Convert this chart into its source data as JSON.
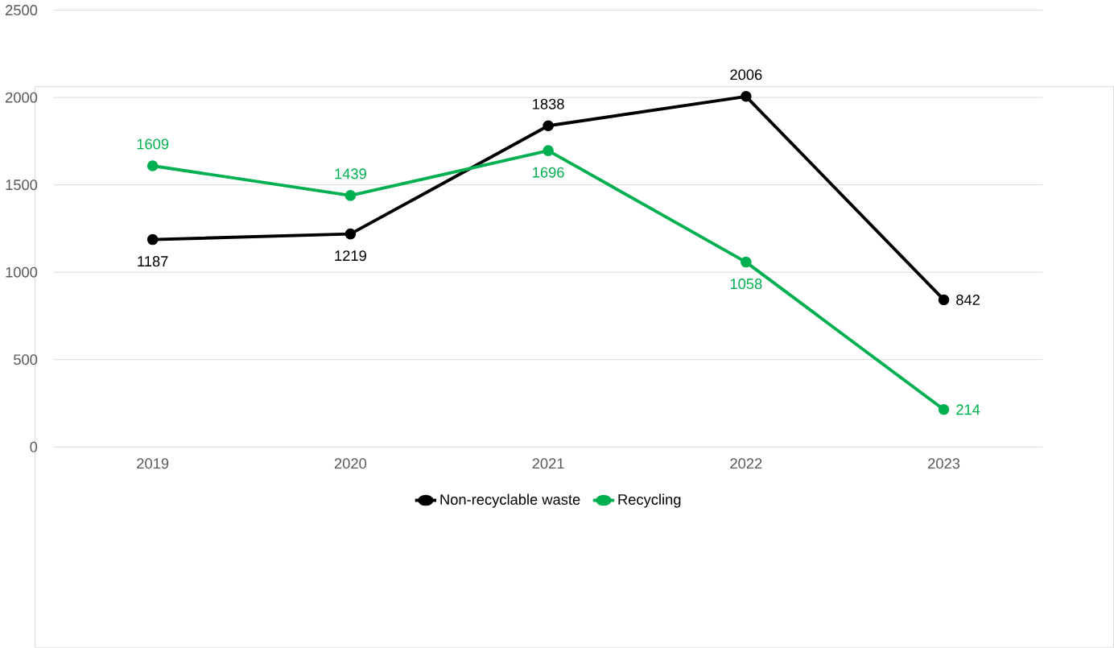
{
  "chart_data": {
    "type": "line",
    "categories": [
      "2019",
      "2020",
      "2021",
      "2022",
      "2023"
    ],
    "series": [
      {
        "name": "Non-recyclable waste",
        "color": "#000000",
        "values": [
          1187,
          1219,
          1838,
          2006,
          842
        ]
      },
      {
        "name": "Recycling",
        "color": "#00b050",
        "values": [
          1609,
          1439,
          1696,
          1058,
          214
        ]
      }
    ],
    "ylim": [
      0,
      2500
    ],
    "yticks": [
      0,
      500,
      1000,
      1500,
      2000,
      2500
    ],
    "grid": "y",
    "legend": "bottom",
    "data_labels": true,
    "marker": "circle",
    "line_style": "solid"
  }
}
